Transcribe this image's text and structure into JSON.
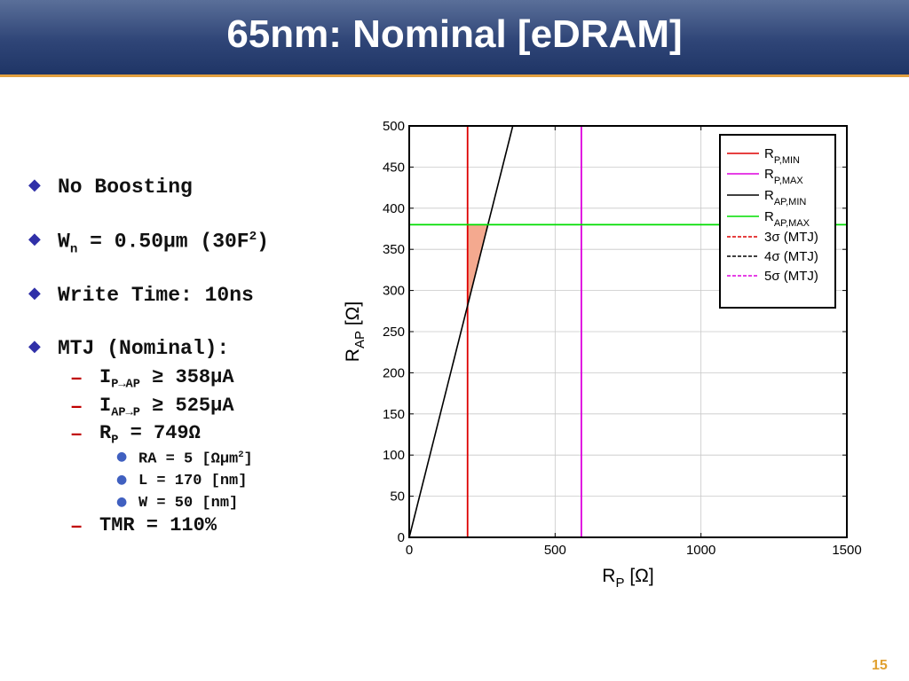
{
  "slide": {
    "title": "65nm: Nominal [eDRAM]",
    "page_number": "15",
    "bullets": {
      "b1": "No Boosting",
      "b2_prefix": "W",
      "b2_sub": "n",
      "b2_mid": " = 0.50μm (30F",
      "b2_sup": "2",
      "b2_end": ")",
      "b3": "Write Time: 10ns",
      "b4": "MTJ (Nominal):",
      "s1_prefix": "I",
      "s1_sub": "P→AP",
      "s1_rest": " ≥ 358μA",
      "s2_prefix": "I",
      "s2_sub": "AP→P",
      "s2_rest": " ≥ 525μA",
      "s3_prefix": "R",
      "s3_sub": "P",
      "s3_rest": " = 749Ω",
      "t1_text": "RA =   5 [Ωμm",
      "t1_sup": "2",
      "t1_end": "]",
      "t2": "L  = 170 [nm]",
      "t3": "W  =  50 [nm]",
      "s4": "TMR = 110%"
    }
  },
  "chart_data": {
    "type": "line",
    "xlabel_main": "R",
    "xlabel_sub": "P",
    "xlabel_unit": " [Ω]",
    "ylabel_main": "R",
    "ylabel_sub": "AP",
    "ylabel_unit": " [Ω]",
    "xlim": [
      0,
      1500
    ],
    "ylim": [
      0,
      500
    ],
    "xticks": [
      "0",
      "500",
      "1000",
      "1500"
    ],
    "yticks": [
      "0",
      "50",
      "100",
      "150",
      "200",
      "250",
      "300",
      "350",
      "400",
      "450",
      "500"
    ],
    "grid": true,
    "legend_position": "top-right",
    "series": [
      {
        "name": "R",
        "name_sub": "P,MIN",
        "kind": "vertical",
        "x": 200,
        "color": "#dd0000",
        "dash": false
      },
      {
        "name": "R",
        "name_sub": "P,MAX",
        "kind": "vertical",
        "x": 590,
        "color": "#dd00dd",
        "dash": false
      },
      {
        "name": "R",
        "name_sub": "AP,MIN",
        "kind": "line",
        "points": [
          [
            0,
            0
          ],
          [
            355,
            500
          ]
        ],
        "color": "#000000",
        "dash": false
      },
      {
        "name": "R",
        "name_sub": "AP,MAX",
        "kind": "horizontal",
        "y": 380,
        "color": "#00dd00",
        "dash": false
      },
      {
        "name": "3σ (MTJ)",
        "name_sub": "",
        "kind": "legend-only",
        "color": "#dd0000",
        "dash": true
      },
      {
        "name": "4σ (MTJ)",
        "name_sub": "",
        "kind": "legend-only",
        "color": "#000000",
        "dash": true
      },
      {
        "name": "5σ (MTJ)",
        "name_sub": "",
        "kind": "legend-only",
        "color": "#dd00dd",
        "dash": true
      }
    ],
    "feasible_region": {
      "color": "#f4a98f",
      "points": [
        [
          200,
          282
        ],
        [
          200,
          380
        ],
        [
          270,
          380
        ]
      ]
    }
  }
}
